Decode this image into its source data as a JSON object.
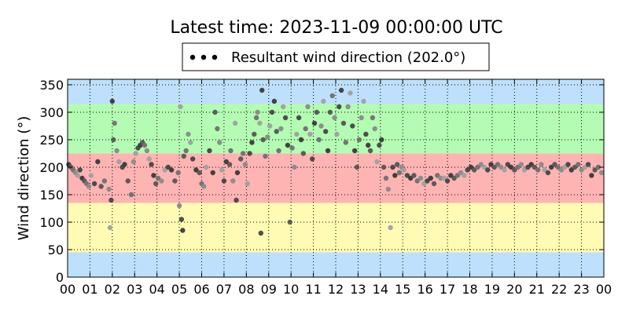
{
  "chart_data": {
    "type": "scatter",
    "title": "Latest time: 2023-11-09 00:00:00 UTC",
    "xlabel": "",
    "ylabel": "Wind direction (°)",
    "xlim": [
      0,
      24
    ],
    "ylim": [
      0,
      360
    ],
    "x_ticks": [
      "00",
      "01",
      "02",
      "03",
      "04",
      "05",
      "06",
      "07",
      "08",
      "09",
      "10",
      "11",
      "12",
      "13",
      "14",
      "15",
      "16",
      "17",
      "18",
      "19",
      "20",
      "21",
      "22",
      "23",
      "00"
    ],
    "y_ticks": [
      0,
      50,
      100,
      150,
      200,
      250,
      300,
      350
    ],
    "grid": true,
    "legend": {
      "placement": "top-center",
      "label": "Resultant wind direction (202.0°)"
    },
    "bands": [
      {
        "from": 0,
        "to": 45,
        "color": "#bee0fc"
      },
      {
        "from": 45,
        "to": 135,
        "color": "#fffbb4"
      },
      {
        "from": 135,
        "to": 225,
        "color": "#ffb4b4"
      },
      {
        "from": 225,
        "to": 315,
        "color": "#b4fcb4"
      },
      {
        "from": 315,
        "to": 360,
        "color": "#bee0fc"
      }
    ],
    "series": [
      {
        "name": "Resultant wind direction (202.0°)",
        "points": [
          [
            0.05,
            205
          ],
          [
            0.15,
            200
          ],
          [
            0.25,
            195
          ],
          [
            0.35,
            190
          ],
          [
            0.45,
            185
          ],
          [
            0.55,
            195
          ],
          [
            0.65,
            180
          ],
          [
            0.75,
            175
          ],
          [
            0.85,
            170
          ],
          [
            0.95,
            165
          ],
          [
            1.05,
            185
          ],
          [
            1.2,
            170
          ],
          [
            1.35,
            210
          ],
          [
            1.5,
            165
          ],
          [
            1.65,
            175
          ],
          [
            1.85,
            160
          ],
          [
            1.9,
            90
          ],
          [
            1.95,
            140
          ],
          [
            2.0,
            320
          ],
          [
            2.05,
            250
          ],
          [
            2.1,
            280
          ],
          [
            2.2,
            230
          ],
          [
            2.3,
            210
          ],
          [
            2.45,
            200
          ],
          [
            2.55,
            205
          ],
          [
            2.7,
            175
          ],
          [
            2.85,
            150
          ],
          [
            2.95,
            210
          ],
          [
            3.05,
            225
          ],
          [
            3.15,
            235
          ],
          [
            3.25,
            240
          ],
          [
            3.35,
            245
          ],
          [
            3.45,
            240
          ],
          [
            3.55,
            230
          ],
          [
            3.65,
            215
          ],
          [
            3.75,
            205
          ],
          [
            3.85,
            185
          ],
          [
            3.95,
            170
          ],
          [
            4.05,
            180
          ],
          [
            4.2,
            175
          ],
          [
            4.35,
            195
          ],
          [
            4.5,
            200
          ],
          [
            4.65,
            195
          ],
          [
            4.8,
            175
          ],
          [
            4.95,
            190
          ],
          [
            5.0,
            130
          ],
          [
            5.05,
            310
          ],
          [
            5.1,
            105
          ],
          [
            5.15,
            85
          ],
          [
            5.2,
            220
          ],
          [
            5.3,
            230
          ],
          [
            5.4,
            260
          ],
          [
            5.5,
            245
          ],
          [
            5.6,
            215
          ],
          [
            5.75,
            195
          ],
          [
            5.9,
            190
          ],
          [
            6.0,
            170
          ],
          [
            6.1,
            165
          ],
          [
            6.2,
            200
          ],
          [
            6.35,
            230
          ],
          [
            6.5,
            190
          ],
          [
            6.6,
            300
          ],
          [
            6.7,
            270
          ],
          [
            6.8,
            245
          ],
          [
            6.9,
            195
          ],
          [
            7.0,
            175
          ],
          [
            7.1,
            210
          ],
          [
            7.25,
            205
          ],
          [
            7.3,
            230
          ],
          [
            7.4,
            175
          ],
          [
            7.5,
            280
          ],
          [
            7.55,
            140
          ],
          [
            7.6,
            190
          ],
          [
            7.75,
            215
          ],
          [
            7.85,
            225
          ],
          [
            7.95,
            205
          ],
          [
            8.05,
            170
          ],
          [
            8.15,
            225
          ],
          [
            8.25,
            245
          ],
          [
            8.35,
            260
          ],
          [
            8.45,
            290
          ],
          [
            8.5,
            300
          ],
          [
            8.6,
            280
          ],
          [
            8.65,
            80
          ],
          [
            8.7,
            340
          ],
          [
            8.75,
            250
          ],
          [
            8.85,
            220
          ],
          [
            8.95,
            255
          ],
          [
            9.05,
            275
          ],
          [
            9.15,
            300
          ],
          [
            9.25,
            320
          ],
          [
            9.35,
            265
          ],
          [
            9.45,
            230
          ],
          [
            9.55,
            270
          ],
          [
            9.65,
            310
          ],
          [
            9.75,
            290
          ],
          [
            9.85,
            240
          ],
          [
            9.95,
            100
          ],
          [
            10.05,
            235
          ],
          [
            10.15,
            200
          ],
          [
            10.25,
            260
          ],
          [
            10.35,
            290
          ],
          [
            10.45,
            250
          ],
          [
            10.55,
            225
          ],
          [
            10.65,
            270
          ],
          [
            10.75,
            310
          ],
          [
            10.85,
            260
          ],
          [
            10.95,
            215
          ],
          [
            11.05,
            280
          ],
          [
            11.15,
            300
          ],
          [
            11.25,
            250
          ],
          [
            11.35,
            275
          ],
          [
            11.45,
            320
          ],
          [
            11.55,
            265
          ],
          [
            11.65,
            230
          ],
          [
            11.75,
            300
          ],
          [
            11.85,
            330
          ],
          [
            11.95,
            290
          ],
          [
            12.05,
            260
          ],
          [
            12.15,
            310
          ],
          [
            12.25,
            340
          ],
          [
            12.35,
            280
          ],
          [
            12.45,
            245
          ],
          [
            12.55,
            310
          ],
          [
            12.65,
            335
          ],
          [
            12.75,
            275
          ],
          [
            12.85,
            230
          ],
          [
            12.95,
            200
          ],
          [
            13.05,
            250
          ],
          [
            13.15,
            290
          ],
          [
            13.25,
            320
          ],
          [
            13.35,
            260
          ],
          [
            13.45,
            240
          ],
          [
            13.55,
            230
          ],
          [
            13.65,
            290
          ],
          [
            13.75,
            270
          ],
          [
            13.85,
            210
          ],
          [
            13.95,
            240
          ],
          [
            14.05,
            250
          ],
          [
            14.15,
            200
          ],
          [
            14.25,
            180
          ],
          [
            14.35,
            160
          ],
          [
            14.45,
            90
          ],
          [
            14.55,
            200
          ],
          [
            14.65,
            185
          ],
          [
            14.75,
            205
          ],
          [
            14.85,
            190
          ],
          [
            14.95,
            200
          ],
          [
            15.05,
            195
          ],
          [
            15.2,
            185
          ],
          [
            15.35,
            180
          ],
          [
            15.5,
            185
          ],
          [
            15.65,
            175
          ],
          [
            15.8,
            180
          ],
          [
            15.95,
            170
          ],
          [
            16.1,
            175
          ],
          [
            16.25,
            180
          ],
          [
            16.4,
            170
          ],
          [
            16.55,
            185
          ],
          [
            16.7,
            180
          ],
          [
            16.85,
            180
          ],
          [
            17.0,
            175
          ],
          [
            17.15,
            185
          ],
          [
            17.3,
            180
          ],
          [
            17.45,
            185
          ],
          [
            17.6,
            190
          ],
          [
            17.75,
            185
          ],
          [
            17.9,
            195
          ],
          [
            18.05,
            200
          ],
          [
            18.2,
            195
          ],
          [
            18.35,
            200
          ],
          [
            18.5,
            205
          ],
          [
            18.65,
            200
          ],
          [
            18.8,
            195
          ],
          [
            18.95,
            205
          ],
          [
            19.1,
            200
          ],
          [
            19.25,
            205
          ],
          [
            19.4,
            200
          ],
          [
            19.55,
            195
          ],
          [
            19.7,
            205
          ],
          [
            19.85,
            200
          ],
          [
            20.0,
            195
          ],
          [
            20.15,
            200
          ],
          [
            20.3,
            205
          ],
          [
            20.45,
            195
          ],
          [
            20.6,
            200
          ],
          [
            20.75,
            205
          ],
          [
            20.9,
            200
          ],
          [
            21.05,
            195
          ],
          [
            21.2,
            205
          ],
          [
            21.35,
            195
          ],
          [
            21.5,
            190
          ],
          [
            21.65,
            200
          ],
          [
            21.8,
            205
          ],
          [
            21.95,
            200
          ],
          [
            22.1,
            195
          ],
          [
            22.25,
            200
          ],
          [
            22.4,
            205
          ],
          [
            22.55,
            195
          ],
          [
            22.7,
            200
          ],
          [
            22.85,
            205
          ],
          [
            23.0,
            195
          ],
          [
            23.15,
            200
          ],
          [
            23.3,
            205
          ],
          [
            23.45,
            185
          ],
          [
            23.6,
            195
          ],
          [
            23.75,
            200
          ],
          [
            23.9,
            190
          ]
        ]
      }
    ]
  }
}
